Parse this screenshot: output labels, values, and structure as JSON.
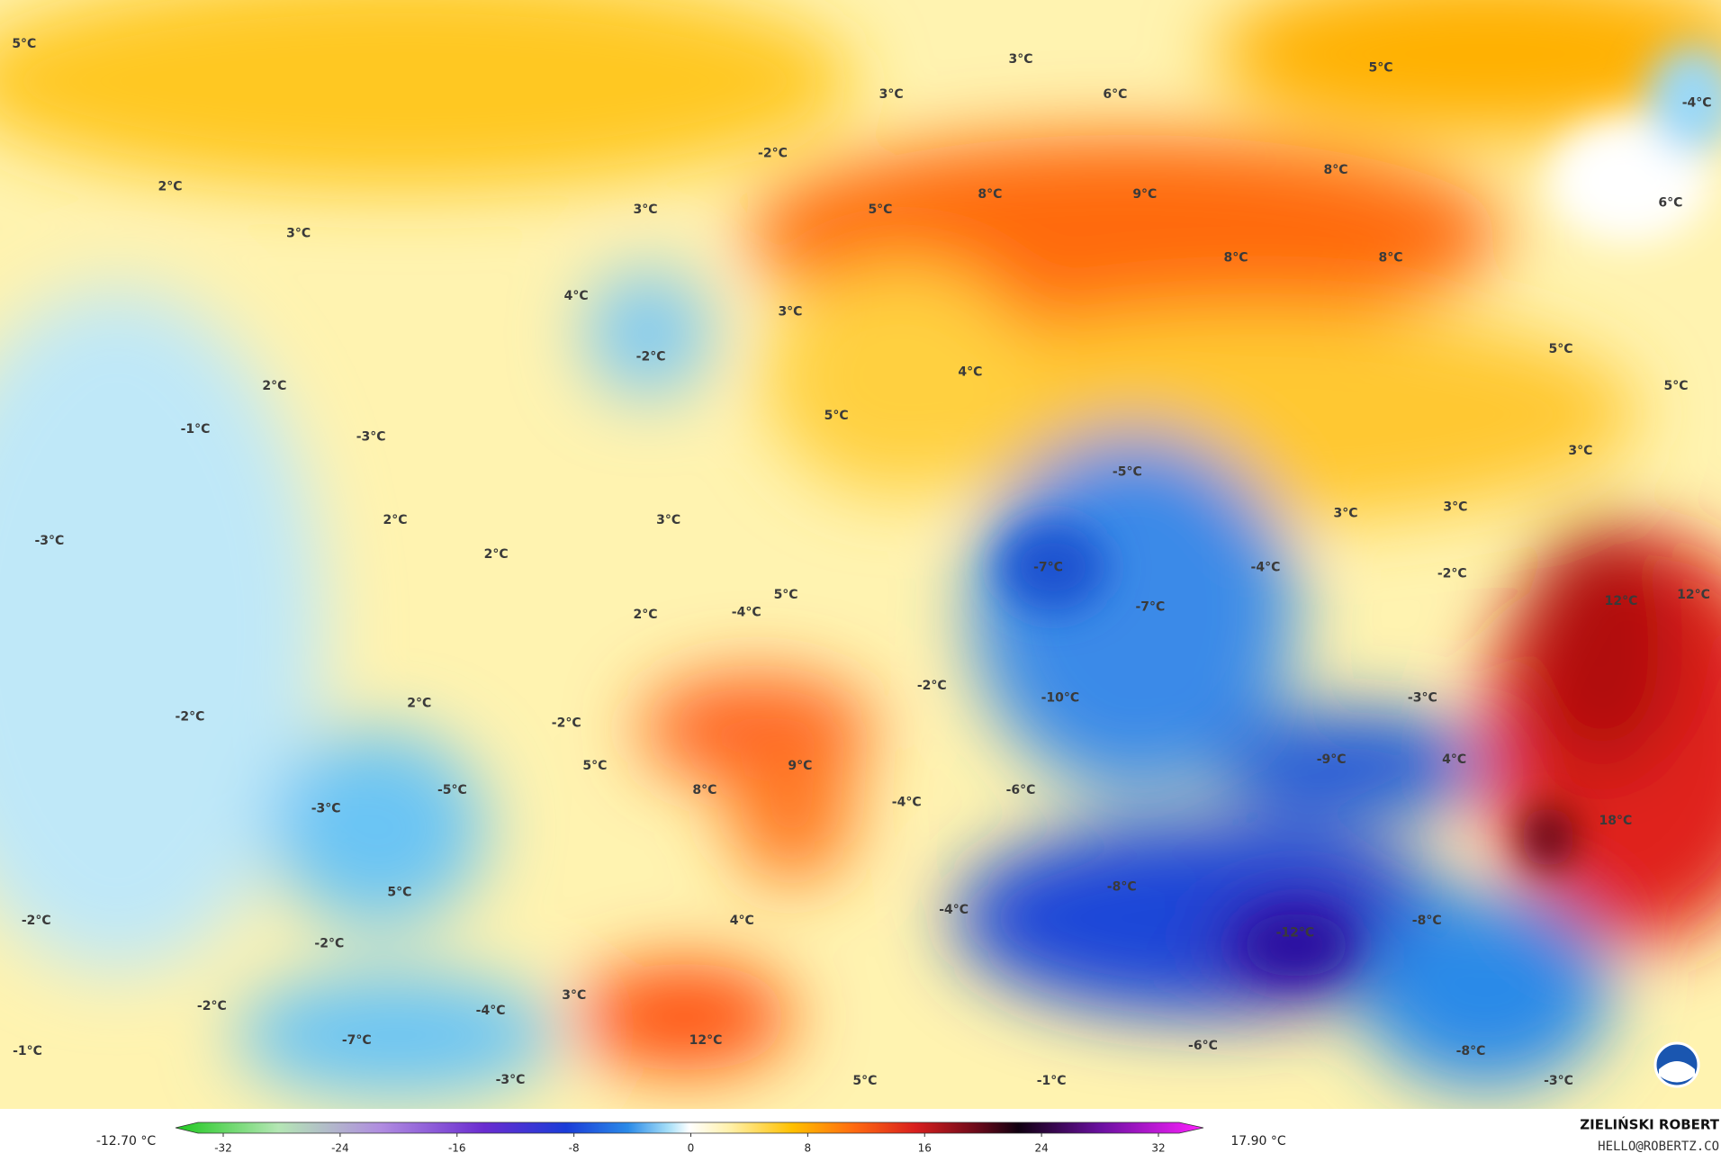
{
  "map_labels": [
    "5°C",
    "2°C",
    "3°C",
    "2°C",
    "-1°C",
    "-3°C",
    "2°C",
    "2°C",
    "-3°C",
    "-2°C",
    "2°C",
    "-2°C",
    "-2°C",
    "-1°C",
    "-3°C",
    "5°C",
    "-2°C",
    "-7°C",
    "-4°C",
    "-3°C",
    "3°C",
    "12°C",
    "5°C",
    "-1°C",
    "4°C",
    "8°C",
    "5°C",
    "-5°C",
    "-2°C",
    "9°C",
    "-4°C",
    "-4°C",
    "-6°C",
    "-2°C",
    "-10°C",
    "-8°C",
    "-12°C",
    "-6°C",
    "-8°C",
    "-3°C",
    "-8°C",
    "18°C",
    "4°C",
    "-9°C",
    "-3°C",
    "-2°C",
    "12°C",
    "12°C",
    "3°C",
    "3°C",
    "-4°C",
    "3°C",
    "5°C",
    "5°C",
    "6°C",
    "-4°C",
    "5°C",
    "8°C",
    "8°C",
    "8°C",
    "9°C",
    "6°C",
    "3°C",
    "3°C",
    "8°C",
    "5°C",
    "-2°C",
    "3°C",
    "4°C",
    "-2°C",
    "3°C",
    "5°C",
    "4°C",
    "-5°C",
    "-7°C",
    "-7°C",
    "3°C",
    "5°C",
    "-4°C",
    "2°C"
  ],
  "colorbar": {
    "min_label": "-12.70 °C",
    "max_label": "17.90 °C",
    "ticks": [
      -32,
      -24,
      -16,
      -8,
      0,
      8,
      16,
      24,
      32
    ]
  },
  "credit": {
    "name": "ZIELIŃSKI ROBERT",
    "contact": "HELLO@ROBERTZ.CO"
  }
}
